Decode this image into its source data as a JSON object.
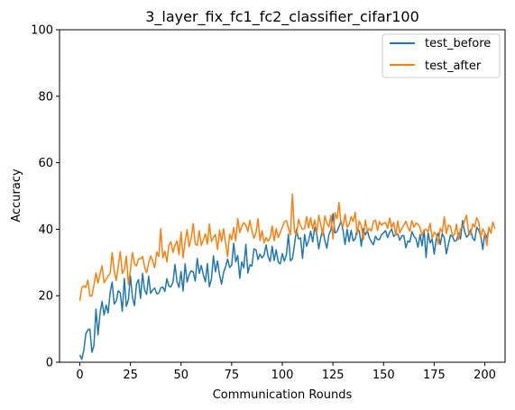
{
  "chart_data": {
    "type": "line",
    "title": "3_layer_fix_fc1_fc2_classifier_cifar100",
    "xlabel": "Communication Rounds",
    "ylabel": "Accuracy",
    "xlim": [
      -10,
      210
    ],
    "ylim": [
      0,
      100
    ],
    "xticks": [
      0,
      25,
      50,
      75,
      100,
      125,
      150,
      175,
      200
    ],
    "yticks": [
      0,
      20,
      40,
      60,
      80,
      100
    ],
    "grid": false,
    "legend_position": "top-right",
    "x_start": 0,
    "x_step": 1,
    "series": [
      {
        "name": "test_before",
        "color": "#1f77b4",
        "values": [
          2.2,
          0.9,
          3.6,
          8.6,
          9.7,
          10.0,
          3.0,
          5.1,
          16.0,
          8.2,
          14.7,
          18.3,
          14.2,
          17.2,
          14.8,
          21.0,
          24.1,
          17.5,
          18.4,
          21.5,
          20.9,
          15.3,
          25.2,
          16.8,
          18.8,
          26.0,
          19.6,
          17.0,
          23.5,
          24.9,
          19.2,
          26.7,
          21.7,
          20.4,
          25.9,
          20.7,
          21.8,
          22.3,
          20.6,
          20.8,
          22.4,
          22.6,
          21.3,
          25.1,
          22.9,
          22.7,
          24.0,
          29.4,
          24.3,
          22.5,
          27.3,
          21.4,
          29.6,
          24.1,
          26.3,
          27.5,
          27.2,
          24.4,
          31.2,
          26.7,
          29.1,
          26.3,
          24.2,
          29.7,
          22.7,
          25.0,
          32.0,
          27.2,
          30.5,
          26.3,
          23.5,
          27.0,
          28.8,
          31.0,
          28.5,
          29.2,
          35.8,
          30.2,
          32.1,
          25.3,
          30.2,
          28.4,
          35.5,
          26.8,
          29.3,
          28.9,
          34.1,
          33.8,
          30.9,
          32.5,
          31.4,
          32.2,
          35.3,
          31.8,
          30.3,
          34.9,
          30.6,
          33.8,
          30.1,
          29.6,
          32.7,
          30.4,
          32.2,
          38.5,
          30.5,
          31.1,
          35.3,
          40.0,
          37.1,
          37.4,
          31.2,
          38.4,
          34.9,
          36.6,
          39.4,
          36.2,
          40.5,
          38.6,
          34.1,
          37.6,
          40.0,
          36.6,
          34.3,
          38.4,
          39.8,
          44.7,
          38.9,
          39.3,
          40.8,
          42.4,
          39.6,
          35.4,
          40.0,
          36.2,
          39.7,
          36.5,
          37.1,
          40.2,
          39.5,
          34.9,
          40.2,
          38.3,
          39.6,
          37.4,
          36.2,
          35.3,
          37.9,
          36.9,
          36.9,
          38.4,
          38.9,
          39.6,
          37.5,
          39.1,
          40.1,
          37.8,
          38.5,
          38.6,
          36.7,
          38.0,
          38.1,
          34.4,
          36.5,
          36.1,
          39.3,
          37.9,
          37.1,
          34.6,
          38.4,
          35.0,
          39.8,
          31.5,
          38.9,
          35.9,
          37.1,
          32.5,
          37.0,
          38.9,
          35.4,
          38.7,
          37.4,
          32.6,
          35.4,
          38.2,
          37.9,
          36.4,
          36.6,
          38.8,
          37.1,
          42.6,
          39.4,
          37.6,
          38.3,
          39.9,
          37.3,
          36.6,
          40.6,
          39.7,
          38.0,
          33.9,
          38.9,
          37.4,
          40.0
        ]
      },
      {
        "name": "test_after",
        "color": "#ff7f0e",
        "values": [
          18.5,
          22.4,
          23.0,
          22.5,
          24.7,
          19.9,
          20.0,
          23.2,
          26.9,
          23.8,
          26.6,
          29.0,
          23.9,
          24.9,
          25.9,
          26.8,
          33.0,
          27.4,
          24.6,
          28.9,
          33.3,
          26.7,
          27.8,
          31.9,
          23.4,
          27.8,
          33.0,
          29.6,
          29.0,
          31.1,
          31.1,
          31.8,
          28.7,
          26.9,
          29.8,
          32.0,
          30.5,
          28.4,
          33.2,
          31.8,
          40.2,
          31.4,
          33.4,
          30.2,
          35.2,
          36.2,
          33.0,
          35.1,
          36.5,
          32.3,
          39.2,
          31.4,
          36.4,
          39.9,
          34.7,
          37.3,
          41.7,
          35.6,
          35.1,
          39.6,
          35.1,
          36.8,
          38.6,
          35.5,
          41.6,
          36.3,
          37.6,
          38.4,
          33.9,
          39.7,
          36.3,
          40.1,
          35.8,
          31.8,
          38.5,
          36.9,
          40.5,
          36.5,
          43.2,
          39.0,
          40.9,
          42.0,
          41.2,
          39.3,
          42.7,
          39.5,
          37.3,
          39.0,
          43.2,
          36.6,
          39.6,
          35.9,
          37.5,
          36.4,
          37.4,
          41.0,
          36.5,
          40.2,
          37.5,
          39.1,
          40.6,
          42.2,
          42.6,
          40.4,
          38.3,
          50.6,
          39.4,
          38.1,
          43.0,
          41.1,
          40.0,
          40.2,
          43.8,
          40.4,
          43.5,
          40.1,
          42.8,
          38.8,
          44.2,
          41.5,
          38.2,
          44.0,
          41.9,
          40.7,
          44.2,
          37.1,
          45.0,
          43.2,
          48.0,
          41.5,
          40.9,
          44.5,
          40.6,
          41.5,
          43.8,
          42.3,
          45.1,
          38.4,
          42.5,
          41.0,
          36.8,
          42.8,
          39.4,
          40.2,
          39.5,
          42.4,
          42.7,
          39.6,
          42.3,
          41.2,
          41.8,
          42.0,
          40.2,
          43.4,
          40.5,
          42.1,
          38.1,
          42.5,
          38.9,
          40.2,
          41.2,
          42.4,
          40.6,
          39.4,
          42.6,
          40.6,
          41.8,
          41.6,
          40.5,
          38.1,
          39.8,
          40.0,
          39.2,
          41.8,
          37.3,
          39.1,
          38.5,
          35.5,
          40.3,
          39.1,
          43.7,
          38.7,
          41.2,
          40.9,
          38.2,
          38.3,
          41.5,
          36.9,
          40.2,
          40.5,
          42.6,
          44.2,
          38.9,
          38.4,
          41.6,
          40.6,
          43.5,
          42.1,
          37.6,
          40.1,
          38.9,
          35.1,
          40.7,
          38.8,
          42.2,
          40.1
        ]
      }
    ]
  }
}
